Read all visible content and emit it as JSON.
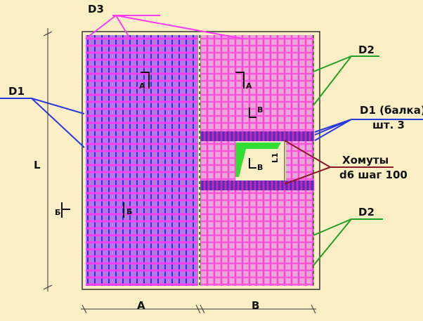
{
  "callouts": {
    "d3": "D3",
    "d2_top": "D2",
    "d1_left": "D1",
    "d1_beam": "D1 (балка)",
    "beam_count": "шт. 3",
    "stirrups": "Хомуты",
    "stirrups_spec": "d6 шаг 100",
    "d2_bottom": "D2"
  },
  "dimensions": {
    "height": "L",
    "width_left": "A",
    "width_right": "B",
    "opening": "L1"
  },
  "section_marks": {
    "a_left": "А",
    "a_right": "А",
    "v_top": "В",
    "v_inner": "В",
    "b_edge": "Б",
    "b_inner": "Б"
  }
}
